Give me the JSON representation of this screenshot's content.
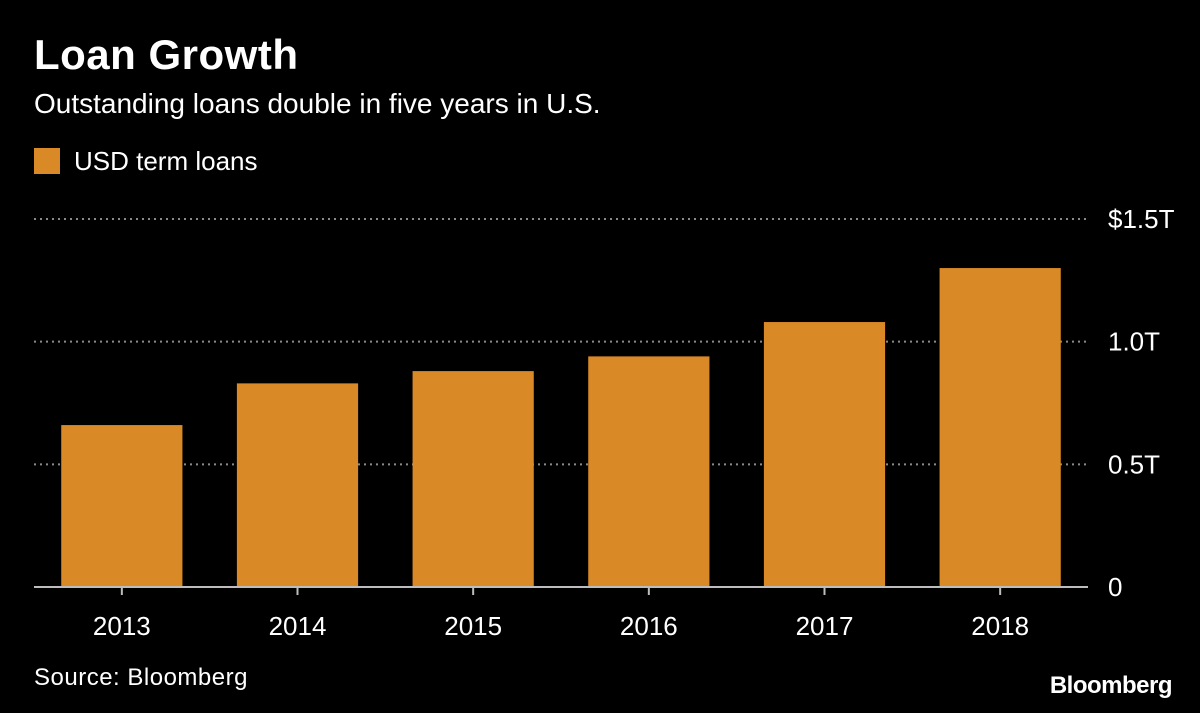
{
  "header": {
    "title": "Loan Growth",
    "subtitle": "Outstanding loans double in five years in U.S."
  },
  "footer": {
    "source": "Source: Bloomberg",
    "logo": "Bloomberg"
  },
  "colors": {
    "background": "#000000",
    "bar": "#d98a26",
    "grid": "#8a8a8a",
    "text": "#ffffff"
  },
  "chart_data": {
    "type": "bar",
    "categories": [
      "2013",
      "2014",
      "2015",
      "2016",
      "2017",
      "2018"
    ],
    "series": [
      {
        "name": "USD term loans",
        "values": [
          0.66,
          0.83,
          0.88,
          0.94,
          1.08,
          1.3
        ]
      }
    ],
    "ylim": [
      0,
      1.5
    ],
    "yticks": [
      0,
      0.5,
      1.0,
      1.5
    ],
    "ytick_labels": [
      "0",
      "0.5T",
      "1.0T",
      "$1.5T"
    ],
    "y_axis_position": "right",
    "grid": true,
    "legend_position": "top-left"
  }
}
